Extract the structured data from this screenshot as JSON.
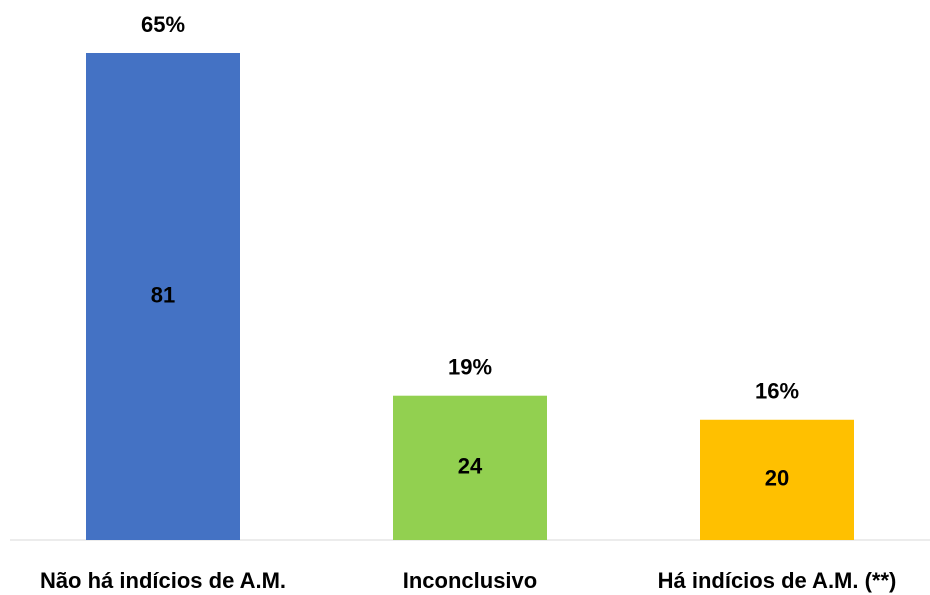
{
  "chart_data": {
    "type": "bar",
    "categories": [
      "Não há indícios de A.M.",
      "Inconclusivo",
      "Há indícios de A.M. (**)"
    ],
    "values": [
      81,
      24,
      20
    ],
    "percent_labels": [
      "65%",
      "19%",
      "16%"
    ],
    "colors": [
      "#4472c4",
      "#92d050",
      "#ffc000"
    ]
  }
}
